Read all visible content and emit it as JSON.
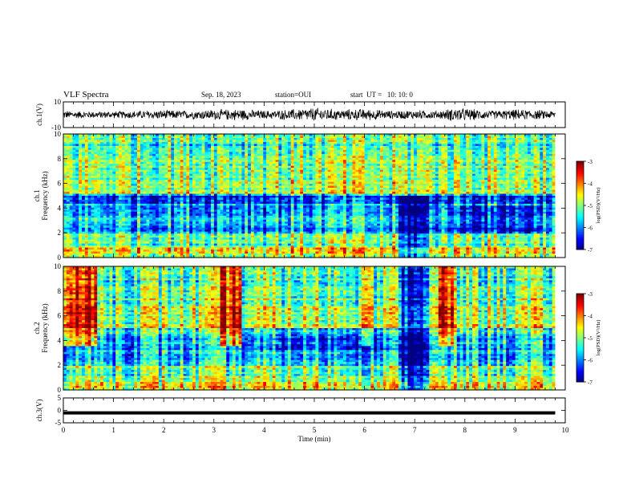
{
  "header": {
    "title": "VLF Spectra",
    "date": "Sep. 18, 2023",
    "station": "station=OUI",
    "start": "start  UT =   10: 10: 0"
  },
  "chart_data": [
    {
      "type": "line",
      "panel": "ch1-waveform",
      "ylabel": "ch.1(V)",
      "ylim": [
        -10,
        10
      ],
      "yticks": [
        10,
        -10
      ],
      "x": [
        0,
        0.5,
        1,
        1.5,
        2,
        2.5,
        3,
        3.2,
        3.5,
        4,
        4.5,
        5,
        5.5,
        6,
        6.5,
        7,
        7.5,
        7.8,
        8,
        8.5,
        9,
        9.5,
        9.8
      ],
      "envelope": [
        3.5,
        3.0,
        3.0,
        3.5,
        4.0,
        3.5,
        4.5,
        4.5,
        5.0,
        3.5,
        4.5,
        6.0,
        4.5,
        5.0,
        3.5,
        4.0,
        3.5,
        6.0,
        5.5,
        3.5,
        4.5,
        4.0,
        3.5
      ]
    },
    {
      "type": "heatmap",
      "panel": "ch1-spectrogram",
      "ylabel_lines": [
        "ch.1",
        "Frequency (kHz)"
      ],
      "ylim": [
        0,
        10
      ],
      "yticks": [
        0,
        2,
        4,
        6,
        8,
        10
      ],
      "colorbar": {
        "label": "log(PSD)(V²/Hz)",
        "ticks": [
          -3,
          -4,
          -5,
          -6,
          -7
        ],
        "range": [
          -7,
          -3
        ]
      }
    },
    {
      "type": "heatmap",
      "panel": "ch2-spectrogram",
      "ylabel_lines": [
        "ch.2",
        "Frequency (kHz)"
      ],
      "ylim": [
        0,
        10
      ],
      "yticks": [
        0,
        2,
        4,
        6,
        8,
        10
      ],
      "colorbar": {
        "label": "log(PSD)(V²/Hz)",
        "ticks": [
          -3,
          -4,
          -5,
          -6,
          -7
        ],
        "range": [
          -7,
          -3
        ]
      }
    },
    {
      "type": "line",
      "panel": "ch3-waveform",
      "ylabel": "ch.3(V)",
      "ylim": [
        -5,
        5
      ],
      "yticks": [
        5,
        0,
        -5
      ],
      "x": [
        0,
        9.8
      ],
      "y": [
        -1,
        -1
      ]
    }
  ],
  "xaxis": {
    "label": "Time (min)",
    "range": [
      0,
      10
    ],
    "ticks": [
      "0",
      "1",
      "2",
      "3",
      "4",
      "5",
      "6",
      "7",
      "8",
      "9",
      "10"
    ]
  },
  "colors": {
    "axis": "#000000",
    "background": "#ffffff"
  }
}
